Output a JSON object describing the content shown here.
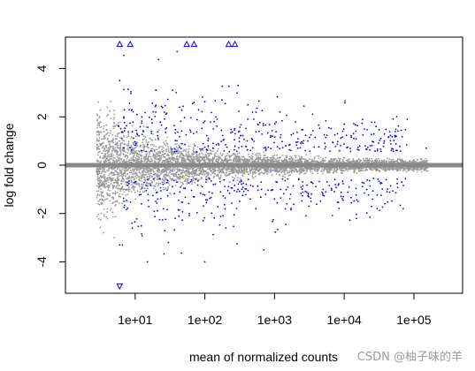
{
  "chart_data": {
    "type": "scatter",
    "title": "",
    "xlabel": "mean of normalized counts",
    "ylabel": "log fold change",
    "x_scale": "log10",
    "xlim": [
      1,
      500000
    ],
    "ylim": [
      -5,
      5
    ],
    "x_tick_values": [
      10,
      100,
      1000,
      10000,
      100000
    ],
    "x_tick_labels": [
      "1e+01",
      "1e+02",
      "1e+03",
      "1e+04",
      "1e+05"
    ],
    "y_tick_values": [
      -4,
      -2,
      0,
      2,
      4
    ],
    "y_tick_labels": [
      "-4",
      "-2",
      "0",
      "2",
      "4"
    ],
    "grid": false,
    "baseline_y": 0,
    "series": [
      {
        "color": "#999999",
        "points": [
          [
            5,
            1.6
          ],
          [
            8,
            1.2
          ],
          [
            15,
            0.9
          ],
          [
            30,
            0.6
          ],
          [
            60,
            0.4
          ],
          [
            150,
            0.25
          ],
          [
            500,
            0.15
          ],
          [
            2000,
            0.1
          ],
          [
            10000,
            0.08
          ],
          [
            3,
            -1.5
          ],
          [
            6,
            -1.3
          ],
          [
            12,
            -1.0
          ],
          [
            25,
            -0.7
          ],
          [
            80,
            -0.4
          ],
          [
            300,
            -0.2
          ],
          [
            1500,
            -0.12
          ],
          [
            8000,
            -0.08
          ],
          [
            4,
            2.4
          ],
          [
            3.5,
            -2.8
          ],
          [
            5,
            -3.0
          ]
        ]
      },
      {
        "color": "#0000ff",
        "points": [
          [
            6,
            3.5
          ],
          [
            9,
            2.3
          ],
          [
            20,
            3.1
          ],
          [
            40,
            4.7
          ],
          [
            70,
            2.6
          ],
          [
            150,
            1.9
          ],
          [
            300,
            3.3
          ],
          [
            600,
            1.4
          ],
          [
            1200,
            2.2
          ],
          [
            3000,
            1.0
          ],
          [
            8000,
            1.3
          ],
          [
            20000,
            0.8
          ],
          [
            80000,
            1.9
          ],
          [
            150000,
            0.7
          ],
          [
            6,
            -3.3
          ],
          [
            9,
            -2.4
          ],
          [
            15,
            -4.0
          ],
          [
            30,
            -3.2
          ],
          [
            60,
            -2.0
          ],
          [
            100,
            -4.0
          ],
          [
            200,
            -2.6
          ],
          [
            450,
            -1.4
          ],
          [
            700,
            -3.5
          ],
          [
            1500,
            -1.6
          ],
          [
            5000,
            -1.0
          ],
          [
            15000,
            -2.2
          ],
          [
            40000,
            -0.6
          ]
        ]
      }
    ],
    "out_of_range_markers": [
      {
        "x": 6,
        "y": 5,
        "direction": "up"
      },
      {
        "x": 8.5,
        "y": 5,
        "direction": "up"
      },
      {
        "x": 55,
        "y": 5,
        "direction": "up"
      },
      {
        "x": 70,
        "y": 5,
        "direction": "up"
      },
      {
        "x": 220,
        "y": 5,
        "direction": "up"
      },
      {
        "x": 270,
        "y": 5,
        "direction": "up"
      },
      {
        "x": 6,
        "y": -5,
        "direction": "down"
      }
    ],
    "colors": {
      "not_significant": "#999999",
      "significant": "#0000ff",
      "baseline": "#888888"
    }
  },
  "watermark": "CSDN @柚子味的羊"
}
